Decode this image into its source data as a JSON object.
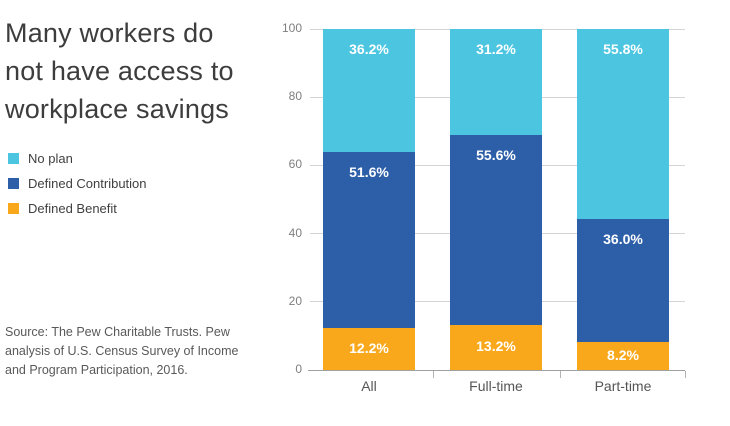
{
  "header": {
    "title": "Many workers do\nnot have access to\nworkplace savings"
  },
  "legend": {
    "items": [
      {
        "label": "No plan",
        "color": "#4BC5E0"
      },
      {
        "label": "Defined Contribution",
        "color": "#2D5FA8"
      },
      {
        "label": "Defined Benefit",
        "color": "#FAA81B"
      }
    ]
  },
  "source": {
    "text": "Source: The Pew Charitable Trusts. Pew\nanalysis of U.S. Census Survey of Income\nand Program Participation, 2016."
  },
  "chart_data": {
    "type": "bar",
    "stacked": true,
    "title": "Many workers do not have access to workplace savings",
    "categories": [
      "All",
      "Full-time",
      "Part-time"
    ],
    "series": [
      {
        "name": "Defined Benefit",
        "color": "#FAA81B",
        "values": [
          12.2,
          13.2,
          8.2
        ]
      },
      {
        "name": "Defined Contribution",
        "color": "#2D5FA8",
        "values": [
          51.6,
          55.6,
          36.0
        ]
      },
      {
        "name": "No plan",
        "color": "#4BC5E0",
        "values": [
          36.2,
          31.2,
          55.8
        ]
      }
    ],
    "value_label_format": "percent_one_decimal",
    "xlabel": "",
    "ylabel": "",
    "ylim": [
      0,
      100
    ],
    "yticks": [
      0,
      20,
      40,
      60,
      80,
      100
    ],
    "grid": true,
    "legend_position": "left"
  }
}
